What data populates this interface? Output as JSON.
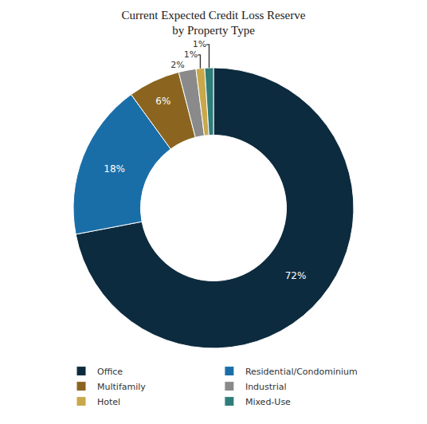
{
  "chart_data": {
    "type": "donut",
    "title": "Current Expected Credit Loss Reserve",
    "subtitle": "by Property Type",
    "categories": [
      "Office",
      "Residential/Condominium",
      "Multifamily",
      "Industrial",
      "Hotel",
      "Mixed-Use"
    ],
    "values": [
      72,
      18,
      6,
      2,
      1,
      1
    ],
    "value_labels": [
      "72%",
      "18%",
      "6%",
      "2%",
      "1%",
      "1%"
    ],
    "colors": [
      "#0d2b3e",
      "#1a6ea8",
      "#8b6520",
      "#8a8a8a",
      "#c9a84c",
      "#2e7d7a"
    ],
    "data_labels": true,
    "legend": "bottom"
  }
}
